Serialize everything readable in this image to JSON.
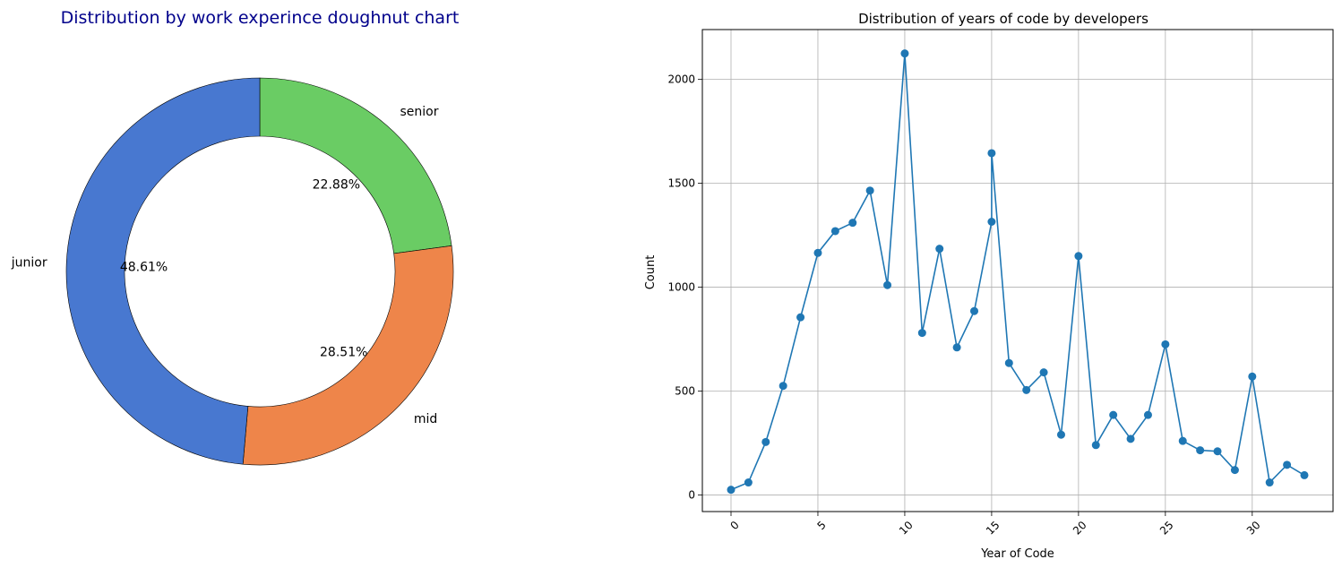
{
  "chart_data": [
    {
      "type": "pie",
      "title": "Distribution by work experince doughnut chart",
      "title_color": "#00008b",
      "labels": [
        "senior",
        "mid",
        "junior"
      ],
      "values": [
        22.88,
        28.51,
        48.61
      ],
      "pct_labels": [
        "22.88%",
        "28.51%",
        "48.61%"
      ],
      "colors": [
        "#6acc64",
        "#ee854a",
        "#4878d0"
      ],
      "edge_color": "#000000"
    },
    {
      "type": "line",
      "title": "Distribution of years of code by developers",
      "xlabel": "Year of Code",
      "ylabel": "Count",
      "xlim": [
        -1.65,
        34.65
      ],
      "ylim": [
        -80,
        2240
      ],
      "xticks": [
        0,
        5,
        10,
        15,
        20,
        25,
        30
      ],
      "yticks": [
        0,
        500,
        1000,
        1500,
        2000
      ],
      "grid": true,
      "color": "#1f77b4",
      "x": [
        0,
        1,
        2,
        3,
        4,
        5,
        6,
        7,
        8,
        9,
        10,
        11,
        12,
        13,
        14,
        15,
        15,
        16,
        17,
        18,
        19,
        20,
        21,
        22,
        23,
        24,
        25,
        26,
        27,
        28,
        29,
        30,
        31,
        32,
        33
      ],
      "y": [
        25,
        60,
        255,
        525,
        855,
        1165,
        1270,
        1310,
        1465,
        1010,
        2125,
        780,
        1185,
        710,
        885,
        1315,
        1645,
        635,
        505,
        590,
        290,
        1150,
        240,
        385,
        270,
        385,
        725,
        260,
        215,
        210,
        120,
        570,
        60,
        145,
        95
      ]
    }
  ]
}
